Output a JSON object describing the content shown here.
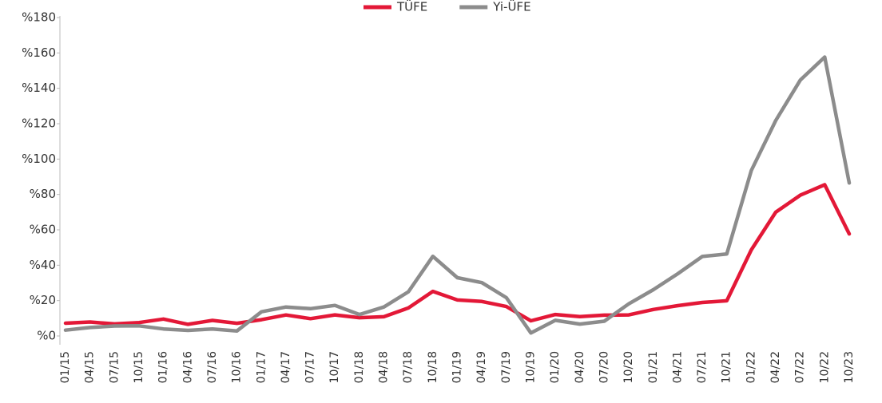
{
  "chart_data": {
    "type": "line",
    "categories": [
      "01/15",
      "04/15",
      "07/15",
      "10/15",
      "01/16",
      "04/16",
      "07/16",
      "10/16",
      "01/17",
      "04/17",
      "07/17",
      "10/17",
      "01/18",
      "04/18",
      "07/18",
      "10/18",
      "01/19",
      "04/19",
      "07/19",
      "10/19",
      "01/20",
      "04/20",
      "07/20",
      "10/20",
      "01/21",
      "04/21",
      "07/21",
      "10/21",
      "01/22",
      "04/22",
      "07/22",
      "10/22",
      "10/23"
    ],
    "series": [
      {
        "name": "TÜFE",
        "color": "#e31837",
        "values": [
          7.24,
          7.91,
          6.81,
          7.58,
          9.58,
          6.57,
          8.79,
          7.16,
          9.22,
          11.87,
          9.79,
          11.9,
          10.35,
          10.85,
          15.85,
          25.24,
          20.35,
          19.5,
          16.65,
          8.55,
          12.15,
          10.94,
          11.76,
          11.89,
          14.97,
          17.14,
          18.95,
          19.89,
          48.69,
          69.97,
          79.6,
          85.51,
          57.68
        ]
      },
      {
        "name": "Yi-ÜFE",
        "color": "#8c8c8c",
        "values": [
          3.28,
          4.8,
          5.62,
          5.74,
          3.96,
          3.17,
          3.96,
          2.84,
          13.69,
          16.37,
          15.45,
          17.28,
          12.14,
          16.37,
          25.0,
          45.01,
          32.93,
          30.12,
          21.66,
          1.7,
          8.84,
          6.71,
          8.33,
          18.2,
          26.16,
          35.17,
          44.92,
          46.31,
          93.53,
          121.82,
          144.61,
          157.69,
          86.46
        ]
      }
    ],
    "ylim": [
      0,
      180
    ],
    "yticks": [
      {
        "value": 0,
        "label": "%0"
      },
      {
        "value": 20,
        "label": "%20"
      },
      {
        "value": 40,
        "label": "%40"
      },
      {
        "value": 60,
        "label": "%60"
      },
      {
        "value": 80,
        "label": "%80"
      },
      {
        "value": 100,
        "label": "%100"
      },
      {
        "value": 120,
        "label": "%120"
      },
      {
        "value": 140,
        "label": "%140"
      },
      {
        "value": 160,
        "label": "%160"
      },
      {
        "value": 180,
        "label": "%180"
      }
    ],
    "legend": "top"
  }
}
